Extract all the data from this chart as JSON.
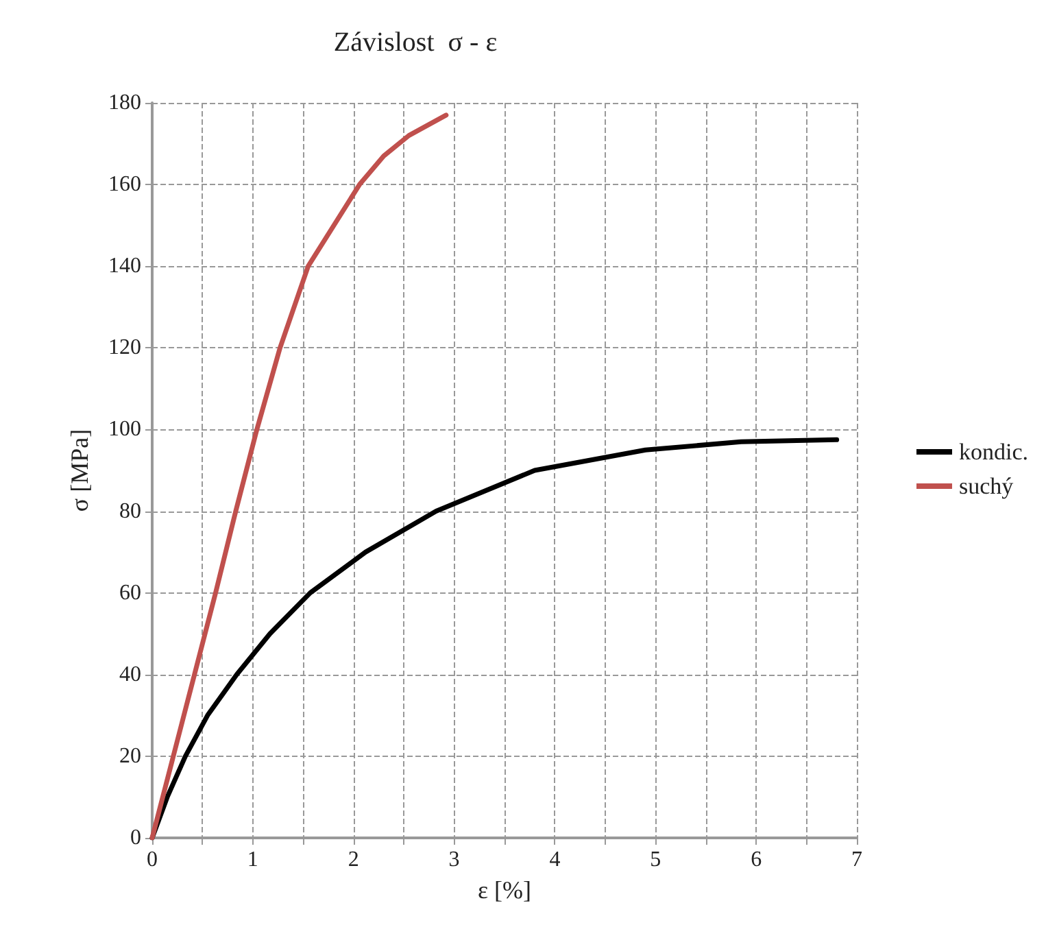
{
  "chart_data": {
    "type": "line",
    "title": "Závislost  σ - ε",
    "xlabel": "ε [%]",
    "ylabel": "σ [MPa]",
    "xlim": [
      0,
      7
    ],
    "xticks": [
      0,
      {
        "value": 0.5,
        "label": null
      },
      1,
      {
        "value": 1.5,
        "label": null
      },
      2,
      {
        "value": 2.5,
        "label": null
      },
      3,
      {
        "value": 3.5,
        "label": null
      },
      4,
      {
        "value": 4.5,
        "label": null
      },
      5,
      {
        "value": 5.5,
        "label": null
      },
      6,
      {
        "value": 6.5,
        "label": null
      },
      7
    ],
    "ylim": [
      0,
      180
    ],
    "yticks": [
      0,
      20,
      40,
      60,
      80,
      100,
      120,
      140,
      160,
      180
    ],
    "grid": true,
    "legend": "right",
    "marker": "none",
    "line_style": "solid",
    "series": [
      {
        "name": "kondic.",
        "color": "#000000",
        "x": [
          0,
          0.15,
          0.33,
          0.55,
          0.84,
          1.17,
          1.57,
          2.12,
          2.82,
          3.8,
          4.9,
          5.85,
          6.8
        ],
        "values": [
          0,
          10,
          20,
          30,
          40,
          50,
          60,
          70,
          80,
          90,
          95,
          97,
          97.5
        ]
      },
      {
        "name": "suchý",
        "color": "#c0504d",
        "x": [
          0,
          0.42,
          0.63,
          0.83,
          1.04,
          1.27,
          1.55,
          2.06,
          2.3,
          2.55,
          2.92
        ],
        "values": [
          0,
          40,
          60,
          80,
          100,
          120,
          140,
          160,
          167,
          172,
          177
        ]
      }
    ]
  }
}
